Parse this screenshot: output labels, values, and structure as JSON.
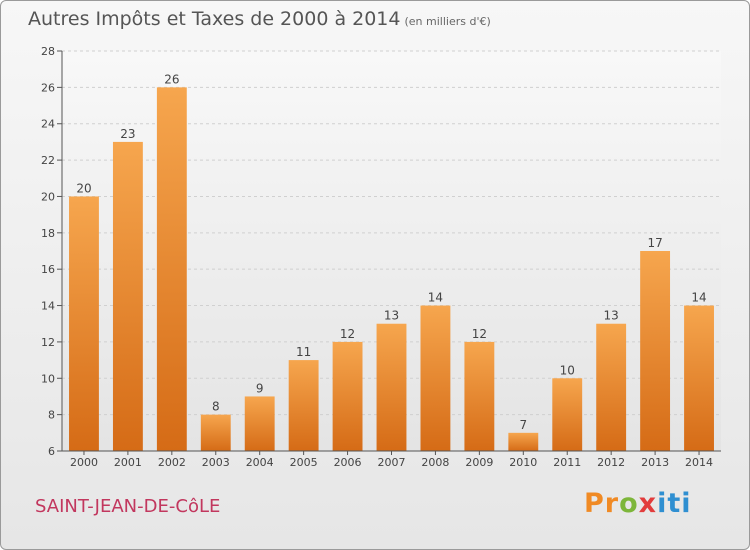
{
  "title": "Autres Impôts et Taxes de 2000 à 2014",
  "unit": "(en milliers d'€)",
  "town": "SAINT-JEAN-DE-CôLE",
  "brand": [
    "Pr",
    "o",
    "x",
    "iti"
  ],
  "colors": {
    "bar_light": "#f6a64e",
    "bar_dark": "#d56b16",
    "title": "#555555",
    "town": "#c2375e"
  },
  "chart_data": {
    "type": "bar",
    "title": "Autres Impôts et Taxes de 2000 à 2014",
    "xlabel": "",
    "ylabel": "",
    "categories": [
      "2000",
      "2001",
      "2002",
      "2003",
      "2004",
      "2005",
      "2006",
      "2007",
      "2008",
      "2009",
      "2010",
      "2011",
      "2012",
      "2013",
      "2014"
    ],
    "values": [
      20,
      23,
      26,
      8,
      9,
      11,
      12,
      13,
      14,
      12,
      7,
      10,
      13,
      17,
      14
    ],
    "ylim": [
      6,
      28
    ],
    "yticks": [
      6,
      8,
      10,
      12,
      14,
      16,
      18,
      20,
      22,
      24,
      26,
      28
    ],
    "grid": true,
    "legend": "none"
  }
}
